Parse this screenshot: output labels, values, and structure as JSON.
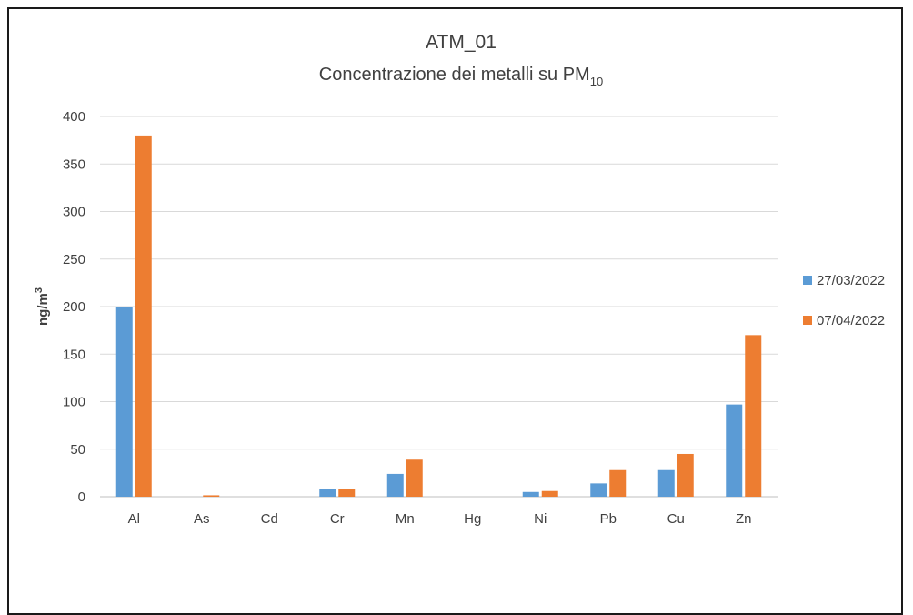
{
  "chart_data": {
    "type": "bar",
    "title": "ATM_01",
    "subtitle": "Concentrazione dei metalli su PM",
    "subtitle_subscript": "10",
    "ylabel": "ng/m",
    "ylabel_superscript": "3",
    "xlabel": "",
    "categories": [
      "Al",
      "As",
      "Cd",
      "Cr",
      "Mn",
      "Hg",
      "Ni",
      "Pb",
      "Cu",
      "Zn"
    ],
    "ylim": [
      0,
      400
    ],
    "yticks": [
      0,
      50,
      100,
      150,
      200,
      250,
      300,
      350,
      400
    ],
    "grid": true,
    "legend_position": "right",
    "series": [
      {
        "name": "27/03/2022",
        "color": "#5b9bd5",
        "values": [
          200,
          0,
          0,
          8,
          24,
          0,
          5,
          14,
          28,
          97
        ]
      },
      {
        "name": "07/04/2022",
        "color": "#ed7d31",
        "values": [
          380,
          1.5,
          0,
          8,
          39,
          0,
          6,
          28,
          45,
          170
        ]
      }
    ]
  }
}
